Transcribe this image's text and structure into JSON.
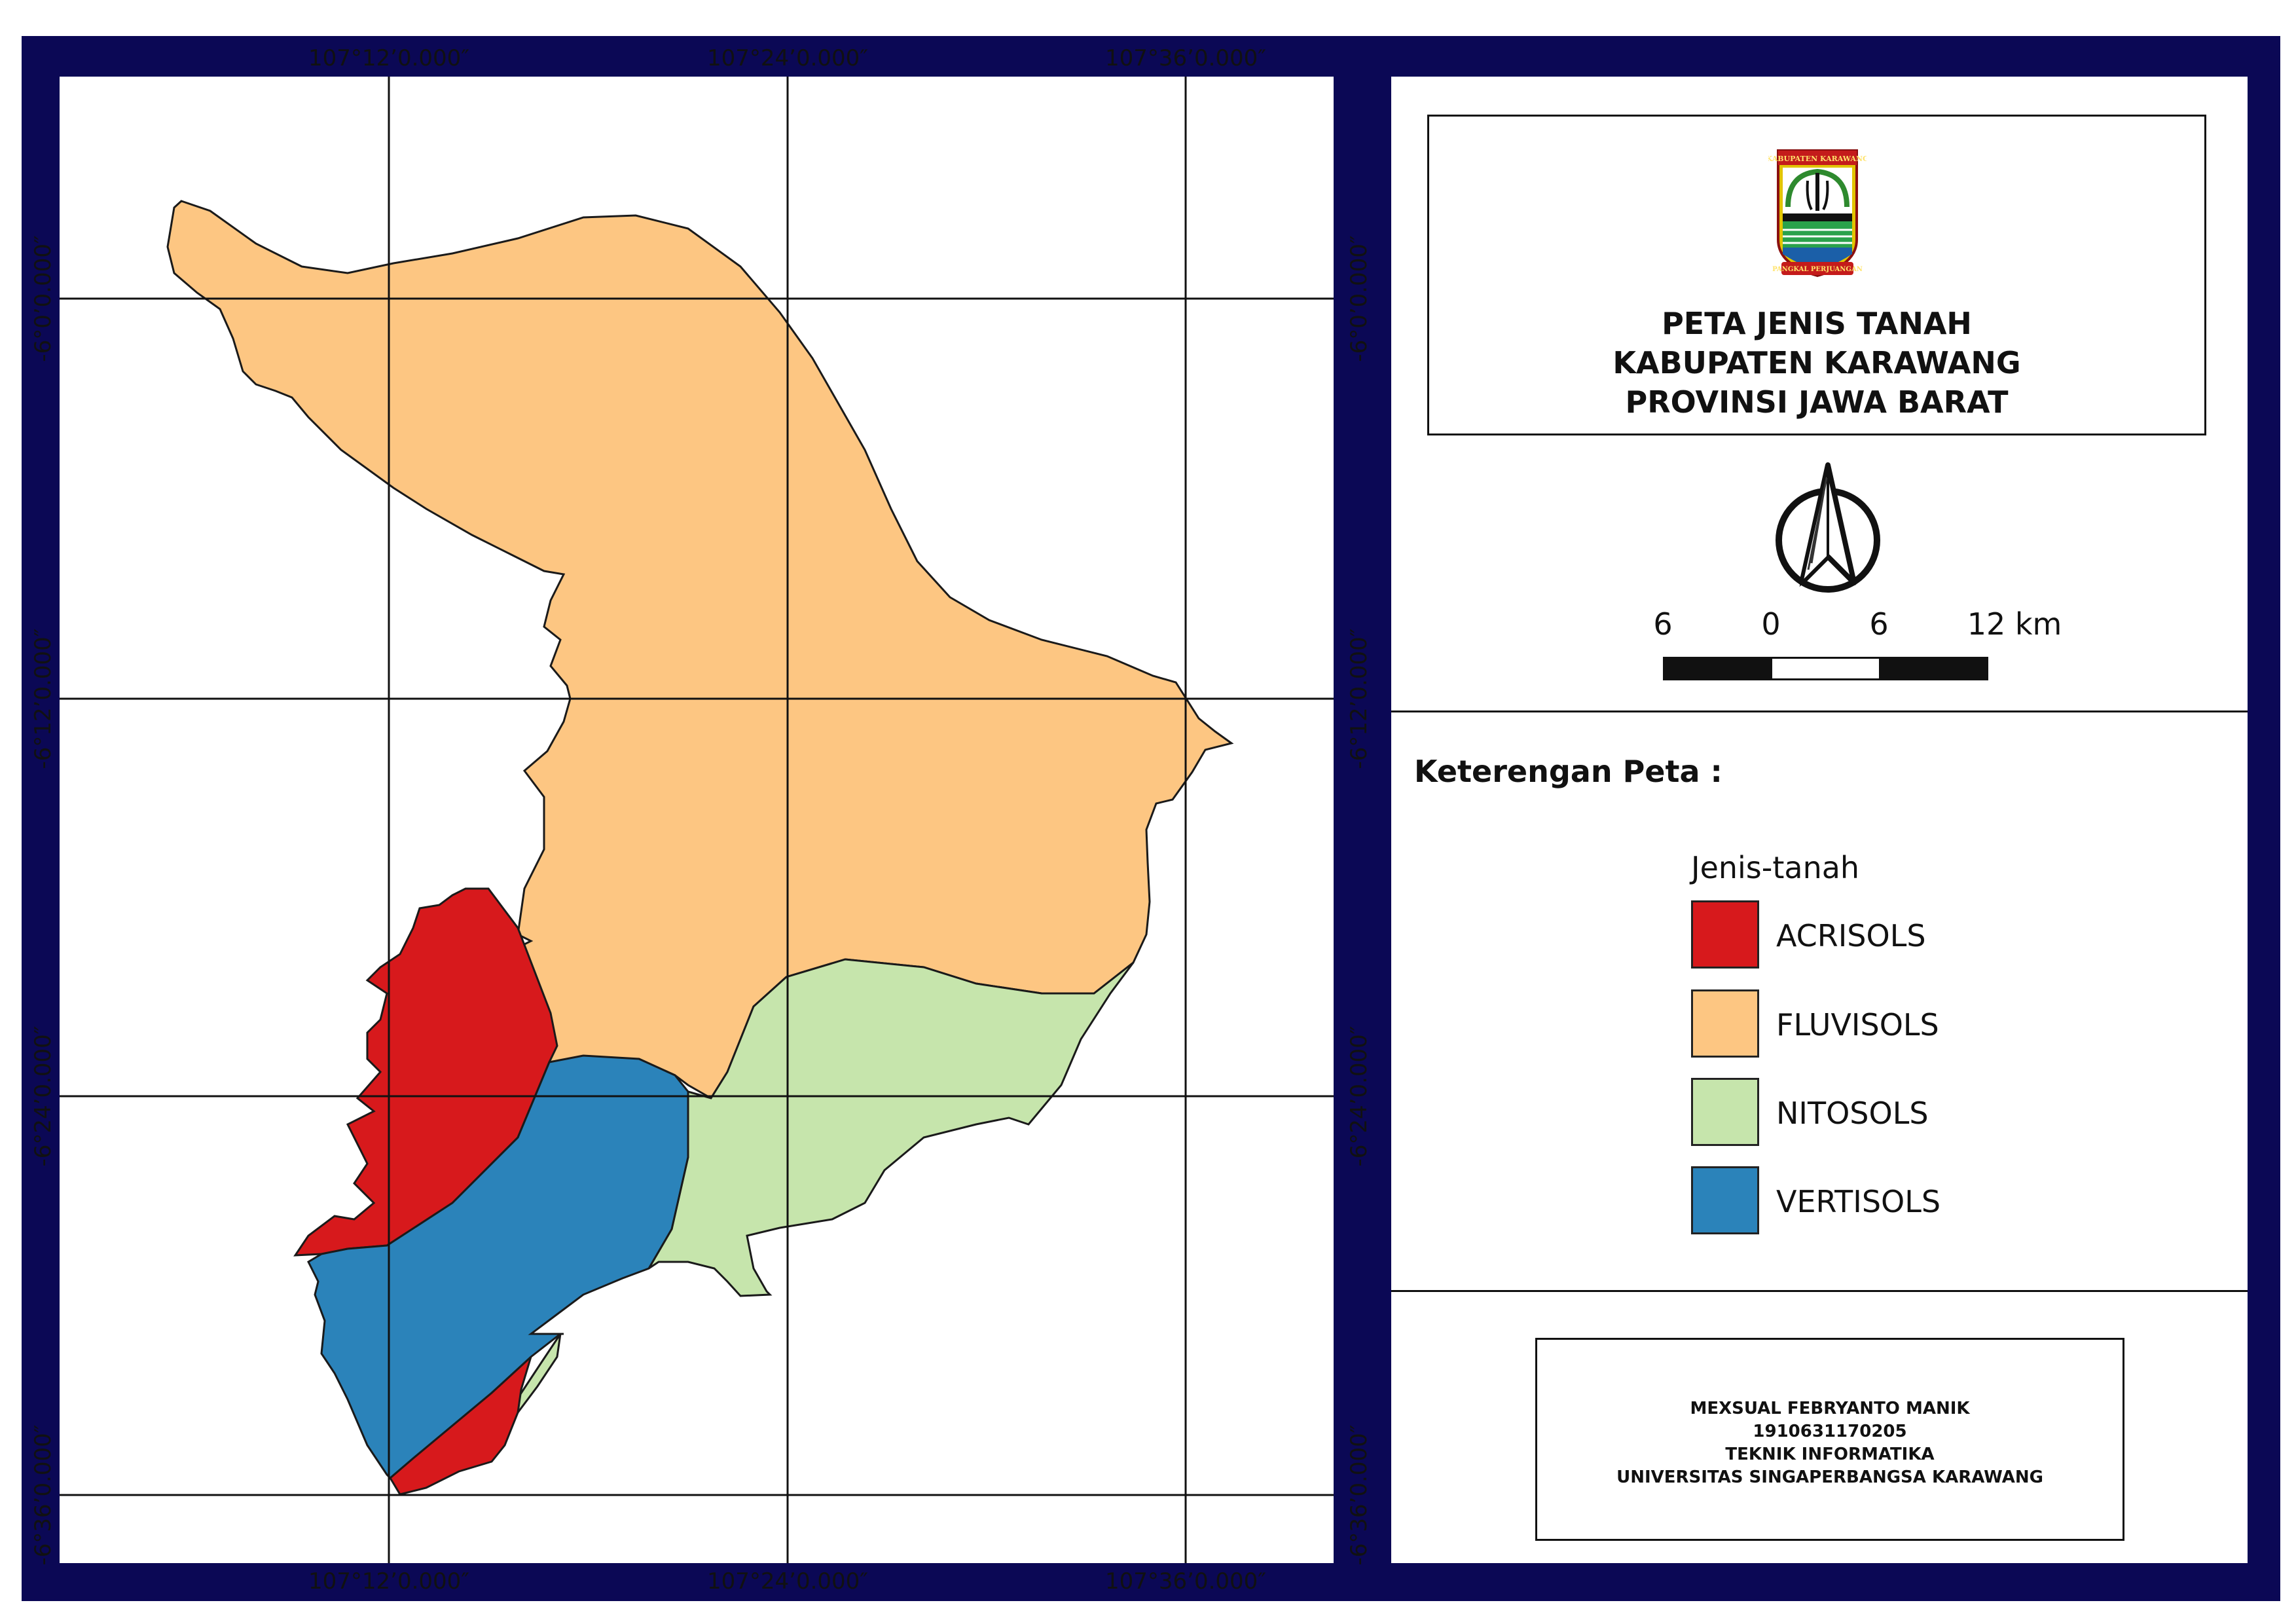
{
  "colors": {
    "frame": "#0b0855",
    "acrisols": "#d7191c",
    "fluvisols": "#fdc682",
    "nitosols": "#c6e5ac",
    "vertisols": "#2b83ba",
    "boundary": "#1a1a1a"
  },
  "graticule": {
    "top_labels": [
      "107°12’0.000″",
      "107°24’0.000″",
      "107°36’0.000″"
    ],
    "bottom_labels": [
      "107°12’0.000″",
      "107°24’0.000″",
      "107°36’0.000″"
    ],
    "left_labels": [
      "-6°0’0.000″",
      "-6°12’0.000″",
      "-6°24’0.000″",
      "-6°36’0.000″"
    ],
    "right_labels": [
      "-6°0’0.000″",
      "-6°12’0.000″",
      "-6°24’0.000″",
      "-6°36’0.000″"
    ]
  },
  "map": {
    "regions": [
      "FLUVISOLS",
      "ACRISOLS",
      "NITOSOLS",
      "VERTISOLS"
    ]
  },
  "title_block": {
    "logo_icon": "kabupaten-karawang-emblem",
    "logo_text_top": "KABUPATEN KARAWANG",
    "logo_text_bottom": "PANGKAL PERJUANGAN",
    "lines": [
      "PETA JENIS TANAH",
      "KABUPATEN KARAWANG",
      "PROVINSI JAWA BARAT"
    ]
  },
  "north_arrow": {
    "icon": "north-arrow-icon"
  },
  "scale_bar": {
    "labels": [
      "6",
      "0",
      "6",
      "12 km"
    ]
  },
  "legend": {
    "heading": "Keterengan Peta :",
    "subtitle": "Jenis-tanah",
    "items": [
      {
        "label": "ACRISOLS",
        "color": "#d7191c"
      },
      {
        "label": "FLUVISOLS",
        "color": "#fdc682"
      },
      {
        "label": "NITOSOLS",
        "color": "#c6e5ac"
      },
      {
        "label": "VERTISOLS",
        "color": "#2b83ba"
      }
    ]
  },
  "author": {
    "lines": [
      "MEXSUAL FEBRYANTO MANIK",
      "1910631170205",
      "TEKNIK INFORMATIKA",
      "UNIVERSITAS SINGAPERBANGSA KARAWANG"
    ]
  }
}
